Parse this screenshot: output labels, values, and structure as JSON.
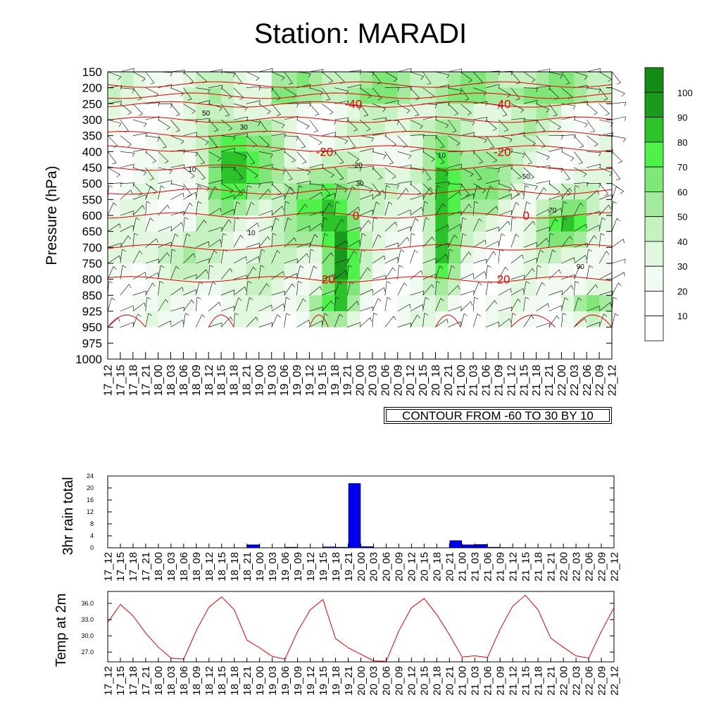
{
  "title": "Station: MARADI",
  "colors": {
    "contour_red": "#e60000",
    "rain_bar": "#0000ee",
    "temp_line": "#e60000",
    "fill_levels": [
      "#ffffff",
      "#ffffff",
      "#f2fbf1",
      "#e1f7de",
      "#c6f1c1",
      "#a5eb9e",
      "#7fe778",
      "#4ff24a",
      "#2cc22a",
      "#1a9a1a"
    ]
  },
  "chart_data": [
    {
      "type": "heatmap",
      "name": "",
      "ylabel": "Pressure (hPa)",
      "y_ticks": [
        150,
        200,
        250,
        300,
        350,
        400,
        450,
        500,
        550,
        600,
        650,
        700,
        750,
        800,
        850,
        925,
        950,
        975,
        1000
      ],
      "x_ticks": [
        "17_12",
        "17_15",
        "17_18",
        "17_21",
        "18_00",
        "18_03",
        "18_06",
        "18_09",
        "18_12",
        "18_15",
        "18_18",
        "18_21",
        "19_00",
        "19_03",
        "19_06",
        "19_09",
        "19_12",
        "19_15",
        "19_18",
        "19_21",
        "20_00",
        "20_03",
        "20_06",
        "20_09",
        "20_12",
        "20_15",
        "20_18",
        "20_21",
        "21_00",
        "21_03",
        "21_06",
        "21_09",
        "21_12",
        "21_15",
        "21_18",
        "21_21",
        "22_00",
        "22_03",
        "22_06",
        "22_09",
        "22_12"
      ],
      "colorbar_labels": [
        "10",
        "20",
        "30",
        "40",
        "50",
        "60",
        "70",
        "80",
        "90",
        "100"
      ],
      "temp_contour_labels": [
        {
          "text": "-40",
          "x": 19.5,
          "level": 250
        },
        {
          "text": "-40",
          "x": 31.3,
          "level": 250
        },
        {
          "text": "-20",
          "x": 17.2,
          "level": 400
        },
        {
          "text": "-20",
          "x": 31.3,
          "level": 400
        },
        {
          "text": "0",
          "x": 19.7,
          "level": 600
        },
        {
          "text": "0",
          "x": 33.2,
          "level": 600
        },
        {
          "text": "20",
          "x": 17.5,
          "level": 800
        },
        {
          "text": "20",
          "x": 31.4,
          "level": 800
        }
      ],
      "rh_contour_labels": [
        "50",
        "30",
        "10",
        "10",
        "-20",
        "10",
        "30",
        "50",
        "70",
        "90"
      ],
      "footnote": "CONTOUR FROM -60 TO 30 BY 10"
    },
    {
      "type": "bar",
      "ylabel": "3hr rain total",
      "ylim": [
        0,
        24
      ],
      "y_ticks": [
        "0",
        "4",
        "8",
        "12",
        "16",
        "20",
        "24"
      ],
      "categories": [
        "17_12",
        "17_15",
        "17_18",
        "17_21",
        "18_00",
        "18_03",
        "18_06",
        "18_09",
        "18_12",
        "18_15",
        "18_18",
        "18_21",
        "19_00",
        "19_03",
        "19_06",
        "19_09",
        "19_12",
        "19_15",
        "19_18",
        "19_21",
        "20_00",
        "20_03",
        "20_06",
        "20_09",
        "20_12",
        "20_15",
        "20_18",
        "20_21",
        "21_00",
        "21_03",
        "21_06",
        "21_09",
        "21_12",
        "21_15",
        "21_18",
        "21_21",
        "22_00",
        "22_03",
        "22_06",
        "22_09",
        "22_12"
      ],
      "values": [
        0,
        0,
        0,
        0,
        0,
        0,
        0,
        0,
        0,
        0,
        0,
        1.0,
        0,
        0,
        0.2,
        0,
        0,
        0.3,
        0.2,
        21.5,
        0.4,
        0,
        0,
        0,
        0,
        0,
        0,
        2.4,
        1.0,
        1.1,
        0.2,
        0.1,
        0,
        0,
        0,
        0,
        0,
        0,
        0,
        0,
        0
      ]
    },
    {
      "type": "line",
      "ylabel": "Temp at 2m",
      "ylim": [
        25.2,
        38.2
      ],
      "y_ticks": [
        "27.0",
        "30.0",
        "33.0",
        "36.0"
      ],
      "categories": [
        "17_12",
        "17_15",
        "17_18",
        "17_21",
        "18_00",
        "18_03",
        "18_06",
        "18_09",
        "18_12",
        "18_15",
        "18_18",
        "18_21",
        "19_00",
        "19_03",
        "19_06",
        "19_09",
        "19_12",
        "19_15",
        "19_18",
        "19_21",
        "20_00",
        "20_03",
        "20_06",
        "20_09",
        "20_12",
        "20_15",
        "20_18",
        "20_21",
        "21_00",
        "21_03",
        "21_06",
        "21_09",
        "21_12",
        "21_15",
        "21_18",
        "21_21",
        "22_00",
        "22_03",
        "22_06",
        "22_09",
        "22_12"
      ],
      "values": [
        32.5,
        35.8,
        33.7,
        30.5,
        27.9,
        25.9,
        25.7,
        31.0,
        35.3,
        37.2,
        34.8,
        29.2,
        27.8,
        26.2,
        25.7,
        30.8,
        34.8,
        36.7,
        29.5,
        27.8,
        26.6,
        25.4,
        25.3,
        30.9,
        35.2,
        36.9,
        33.9,
        30.2,
        26.1,
        26.3,
        26.0,
        31.2,
        35.5,
        37.5,
        34.8,
        29.6,
        27.9,
        26.3,
        25.9,
        30.8,
        35.2
      ]
    }
  ]
}
